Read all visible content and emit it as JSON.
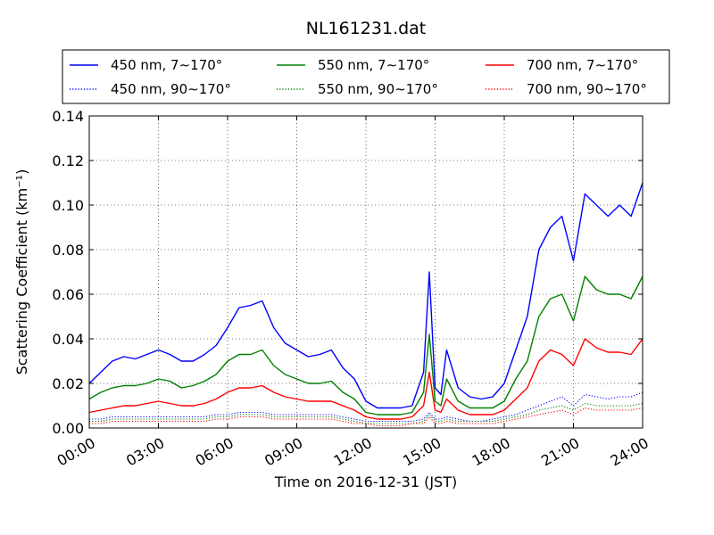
{
  "chart_data": {
    "type": "line",
    "title": "NL161231.dat",
    "xlabel": "Time on 2016-12-31 (JST)",
    "ylabel": "Scattering Coefficient (km⁻¹)",
    "xlim_hours": [
      0,
      24
    ],
    "ylim": [
      0,
      0.14
    ],
    "x_ticks": [
      "00:00",
      "03:00",
      "06:00",
      "09:00",
      "12:00",
      "15:00",
      "18:00",
      "21:00",
      "24:00"
    ],
    "y_ticks": [
      "0.00",
      "0.02",
      "0.04",
      "0.06",
      "0.08",
      "0.10",
      "0.12",
      "0.14"
    ],
    "grid": true,
    "legend_position": "top",
    "x_hours": [
      0,
      0.5,
      1,
      1.5,
      2,
      2.5,
      3,
      3.5,
      4,
      4.5,
      5,
      5.5,
      6,
      6.5,
      7,
      7.5,
      8,
      8.5,
      9,
      9.5,
      10,
      10.5,
      11,
      11.5,
      12,
      12.5,
      13,
      13.5,
      14,
      14.5,
      14.75,
      15,
      15.25,
      15.5,
      16,
      16.5,
      17,
      17.5,
      18,
      18.5,
      19,
      19.5,
      20,
      20.5,
      21,
      21.5,
      22,
      22.5,
      23,
      23.5,
      24
    ],
    "series": [
      {
        "name": "450 nm, 7∼170°",
        "color": "#0000ff",
        "style": "solid",
        "values": [
          0.02,
          0.025,
          0.03,
          0.032,
          0.031,
          0.033,
          0.035,
          0.033,
          0.03,
          0.03,
          0.033,
          0.037,
          0.045,
          0.054,
          0.055,
          0.057,
          0.045,
          0.038,
          0.035,
          0.032,
          0.033,
          0.035,
          0.027,
          0.022,
          0.012,
          0.009,
          0.009,
          0.009,
          0.01,
          0.025,
          0.07,
          0.018,
          0.015,
          0.035,
          0.018,
          0.014,
          0.013,
          0.014,
          0.02,
          0.035,
          0.05,
          0.08,
          0.09,
          0.095,
          0.075,
          0.105,
          0.1,
          0.095,
          0.1,
          0.095,
          0.11
        ]
      },
      {
        "name": "450 nm, 90∼170°",
        "color": "#0000ff",
        "style": "dotted",
        "values": [
          0.004,
          0.004,
          0.005,
          0.005,
          0.005,
          0.005,
          0.005,
          0.005,
          0.005,
          0.005,
          0.005,
          0.006,
          0.006,
          0.007,
          0.007,
          0.007,
          0.006,
          0.006,
          0.006,
          0.006,
          0.006,
          0.006,
          0.005,
          0.004,
          0.003,
          0.003,
          0.003,
          0.003,
          0.003,
          0.004,
          0.007,
          0.004,
          0.004,
          0.005,
          0.004,
          0.003,
          0.003,
          0.004,
          0.005,
          0.006,
          0.008,
          0.01,
          0.012,
          0.014,
          0.01,
          0.015,
          0.014,
          0.013,
          0.014,
          0.014,
          0.016
        ]
      },
      {
        "name": "550 nm, 7∼170°",
        "color": "#008000",
        "style": "solid",
        "values": [
          0.013,
          0.016,
          0.018,
          0.019,
          0.019,
          0.02,
          0.022,
          0.021,
          0.018,
          0.019,
          0.021,
          0.024,
          0.03,
          0.033,
          0.033,
          0.035,
          0.028,
          0.024,
          0.022,
          0.02,
          0.02,
          0.021,
          0.016,
          0.013,
          0.007,
          0.006,
          0.006,
          0.006,
          0.007,
          0.016,
          0.042,
          0.012,
          0.01,
          0.022,
          0.012,
          0.009,
          0.009,
          0.009,
          0.012,
          0.022,
          0.03,
          0.05,
          0.058,
          0.06,
          0.048,
          0.068,
          0.062,
          0.06,
          0.06,
          0.058,
          0.068
        ]
      },
      {
        "name": "550 nm, 90∼170°",
        "color": "#008000",
        "style": "dotted",
        "values": [
          0.003,
          0.003,
          0.004,
          0.004,
          0.004,
          0.004,
          0.004,
          0.004,
          0.004,
          0.004,
          0.004,
          0.005,
          0.005,
          0.006,
          0.006,
          0.006,
          0.005,
          0.005,
          0.005,
          0.005,
          0.005,
          0.005,
          0.004,
          0.003,
          0.002,
          0.002,
          0.002,
          0.002,
          0.002,
          0.003,
          0.006,
          0.003,
          0.003,
          0.004,
          0.003,
          0.003,
          0.003,
          0.003,
          0.004,
          0.005,
          0.006,
          0.008,
          0.009,
          0.01,
          0.008,
          0.011,
          0.01,
          0.01,
          0.01,
          0.01,
          0.011
        ]
      },
      {
        "name": "700 nm, 7∼170°",
        "color": "#ff0000",
        "style": "solid",
        "values": [
          0.007,
          0.008,
          0.009,
          0.01,
          0.01,
          0.011,
          0.012,
          0.011,
          0.01,
          0.01,
          0.011,
          0.013,
          0.016,
          0.018,
          0.018,
          0.019,
          0.016,
          0.014,
          0.013,
          0.012,
          0.012,
          0.012,
          0.01,
          0.008,
          0.005,
          0.004,
          0.004,
          0.004,
          0.005,
          0.01,
          0.025,
          0.008,
          0.007,
          0.013,
          0.008,
          0.006,
          0.006,
          0.006,
          0.008,
          0.013,
          0.018,
          0.03,
          0.035,
          0.033,
          0.028,
          0.04,
          0.036,
          0.034,
          0.034,
          0.033,
          0.04
        ]
      },
      {
        "name": "700 nm, 90∼170°",
        "color": "#ff0000",
        "style": "dotted",
        "values": [
          0.002,
          0.002,
          0.003,
          0.003,
          0.003,
          0.003,
          0.003,
          0.003,
          0.003,
          0.003,
          0.003,
          0.004,
          0.004,
          0.005,
          0.005,
          0.005,
          0.004,
          0.004,
          0.004,
          0.004,
          0.004,
          0.004,
          0.003,
          0.002,
          0.002,
          0.001,
          0.001,
          0.001,
          0.002,
          0.002,
          0.005,
          0.002,
          0.002,
          0.003,
          0.002,
          0.002,
          0.002,
          0.002,
          0.003,
          0.004,
          0.005,
          0.006,
          0.007,
          0.008,
          0.006,
          0.009,
          0.008,
          0.008,
          0.008,
          0.008,
          0.009
        ]
      }
    ]
  }
}
